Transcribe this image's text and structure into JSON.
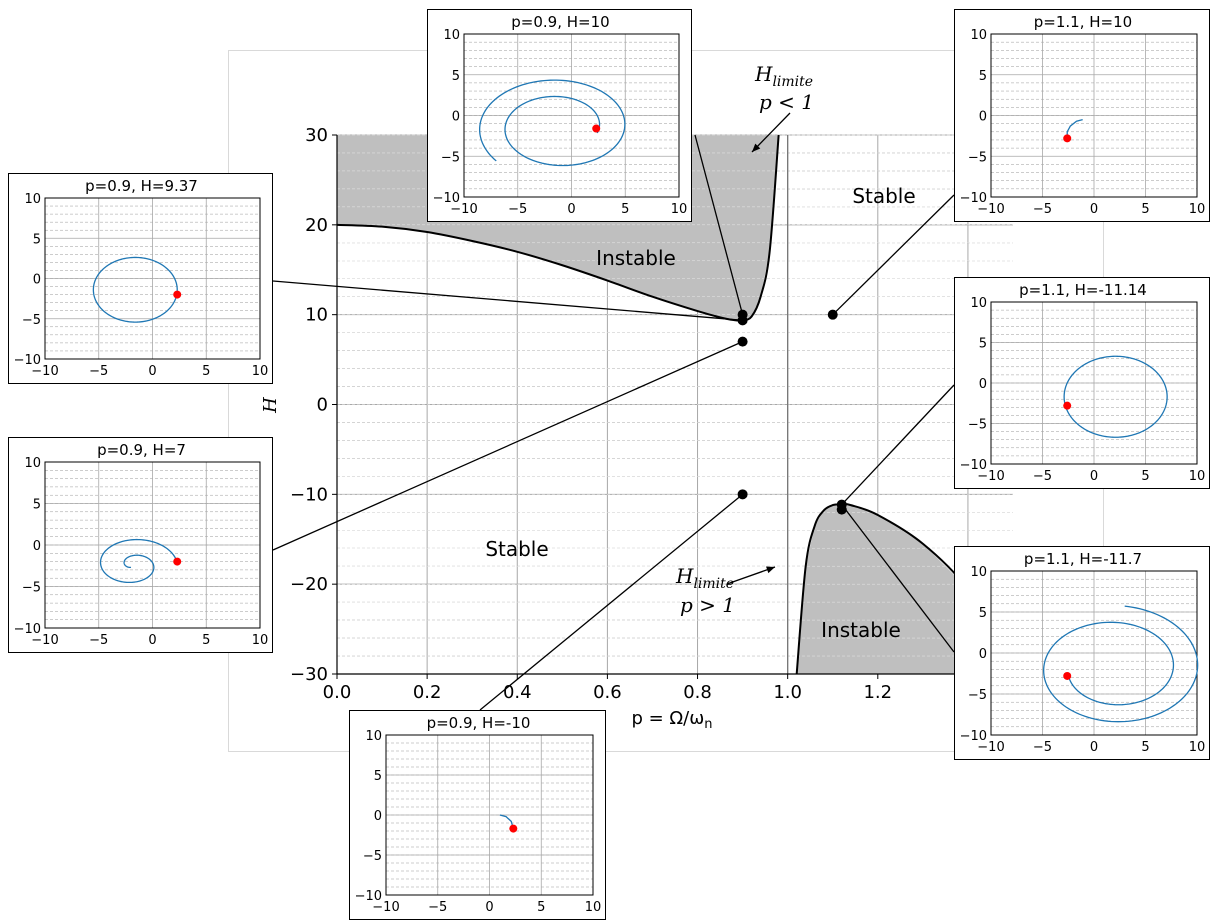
{
  "chart_data": {
    "type": "line",
    "xlabel": "p = Ω/ω",
    "xlabel_sub": "n",
    "ylabel": "H",
    "xlim": [
      0.0,
      1.5
    ],
    "ylim": [
      -30,
      30
    ],
    "x_ticks": [
      "0.0",
      "0.2",
      "0.4",
      "0.6",
      "0.8",
      "1.0",
      "1.2",
      "1.4"
    ],
    "y_ticks": [
      "30",
      "20",
      "10",
      "0",
      "−10",
      "−20",
      "−30"
    ],
    "grid": true,
    "curves": [
      {
        "label": "upper stability boundary",
        "x": [
          0.0,
          0.1,
          0.2,
          0.3,
          0.4,
          0.5,
          0.6,
          0.7,
          0.8,
          0.85,
          0.88,
          0.9,
          0.92,
          0.94,
          0.96,
          0.98
        ],
        "y": [
          20.0,
          19.8,
          19.2,
          18.2,
          17.0,
          15.5,
          13.8,
          12.0,
          10.4,
          9.7,
          9.4,
          9.37,
          9.8,
          12.0,
          17.0,
          30.0
        ]
      },
      {
        "label": "lower stability boundary",
        "x": [
          1.02,
          1.04,
          1.06,
          1.08,
          1.1,
          1.12,
          1.14,
          1.2,
          1.3,
          1.4,
          1.5
        ],
        "y": [
          -30,
          -18.0,
          -13.5,
          -11.8,
          -11.2,
          -11.1,
          -11.2,
          -12.3,
          -15.5,
          -20.5,
          -28.0
        ]
      }
    ],
    "points": [
      {
        "x": 0.9,
        "y": 10
      },
      {
        "x": 0.9,
        "y": 9.37
      },
      {
        "x": 0.9,
        "y": 7
      },
      {
        "x": 0.9,
        "y": -10
      },
      {
        "x": 1.1,
        "y": 10
      },
      {
        "x": 1.12,
        "y": -11.14
      },
      {
        "x": 1.12,
        "y": -11.7
      }
    ],
    "annotations": {
      "upper_instable": "Instable",
      "upper_stable": "Stable",
      "lower_stable": "Stable",
      "lower_instable": "Instable",
      "h_limite": "H",
      "h_limite_sub": "limite",
      "p_less": "p < 1",
      "p_greater": "p > 1"
    },
    "insets": [
      {
        "title": "p=0.9, H=10",
        "xlim": [
          -10,
          10
        ],
        "ylim": [
          -10,
          10
        ]
      },
      {
        "title": "p=1.1, H=10",
        "xlim": [
          -10,
          10
        ],
        "ylim": [
          -10,
          10
        ]
      },
      {
        "title": "p=0.9, H=9.37",
        "xlim": [
          -10,
          10
        ],
        "ylim": [
          -10,
          10
        ]
      },
      {
        "title": "p=1.1, H=-11.14",
        "xlim": [
          -10,
          10
        ],
        "ylim": [
          -10,
          10
        ]
      },
      {
        "title": "p=0.9, H=7",
        "xlim": [
          -10,
          10
        ],
        "ylim": [
          -10,
          10
        ]
      },
      {
        "title": "p=1.1, H=-11.7",
        "xlim": [
          -10,
          10
        ],
        "ylim": [
          -10,
          10
        ]
      },
      {
        "title": "p=0.9, H=-10",
        "xlim": [
          -10,
          10
        ],
        "ylim": [
          -10,
          10
        ]
      }
    ],
    "inset_ticks": [
      "10",
      "5",
      "0",
      "−5",
      "−10"
    ],
    "inset_xticks": [
      "−10",
      "−5",
      "0",
      "5",
      "10"
    ],
    "colors": {
      "trajectory": "#1f77b4",
      "start_point": "#ff0000",
      "instable_fill": "#bfbfbf"
    }
  }
}
